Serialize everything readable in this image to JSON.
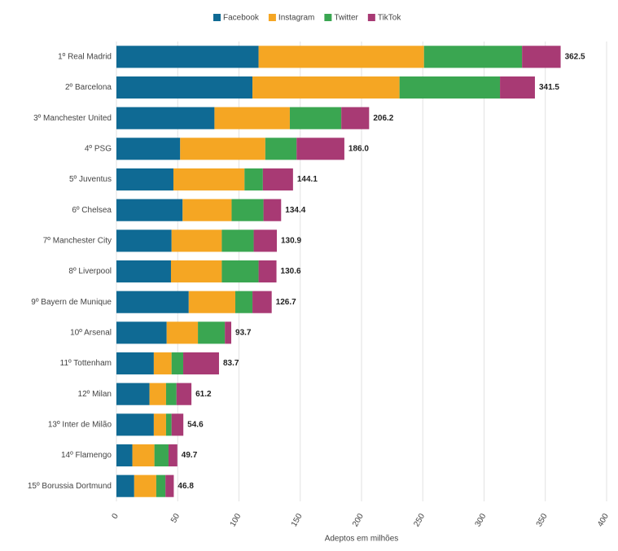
{
  "chart_data": {
    "type": "stacked-bar-horizontal",
    "x_label": "Adeptos em milhões",
    "categories": [
      "1º Real Madrid",
      "2º Barcelona",
      "3º Manchester United",
      "4º PSG",
      "5º Juventus",
      "6º Chelsea",
      "7º Manchester City",
      "8º Liverpool",
      "9º Bayern de Munique",
      "10º Arsenal",
      "11º Tottenham",
      "12º Milan",
      "13º Inter de Milão",
      "14º Flamengo",
      "15º Borussia Dortmund"
    ],
    "series": [
      {
        "name": "Facebook",
        "color": "#0f6a94",
        "values": [
          116,
          111,
          80,
          52,
          46.5,
          54,
          45,
          44.5,
          59,
          41,
          30.5,
          27,
          30.5,
          13,
          14.5
        ]
      },
      {
        "name": "Instagram",
        "color": "#f5a623",
        "values": [
          135,
          120,
          61.5,
          69.5,
          58,
          40,
          41,
          41.5,
          38,
          25.5,
          14.5,
          13.5,
          10,
          18,
          18
        ]
      },
      {
        "name": "Twitter",
        "color": "#3aa651",
        "values": [
          80,
          82,
          42,
          25.5,
          15,
          26,
          26,
          30,
          14,
          22,
          9.5,
          8.5,
          4.5,
          11.5,
          7.5
        ]
      },
      {
        "name": "TikTok",
        "color": "#a83a74",
        "values": [
          31.5,
          28.5,
          22.7,
          39,
          24.6,
          14.4,
          18.9,
          14.6,
          15.7,
          5.2,
          29.2,
          12.2,
          9.6,
          7.2,
          6.8
        ]
      }
    ],
    "total_labels": [
      "362.5",
      "341.5",
      "206.2",
      "186.0",
      "144.1",
      "134.4",
      "130.9",
      "130.6",
      "126.7",
      "93.7",
      "83.7",
      "61.2",
      "54.6",
      "49.7",
      "46.8"
    ],
    "xlim": [
      0,
      400
    ],
    "xticks": [
      0,
      50,
      100,
      150,
      200,
      250,
      300,
      350,
      400
    ],
    "grid": true
  }
}
